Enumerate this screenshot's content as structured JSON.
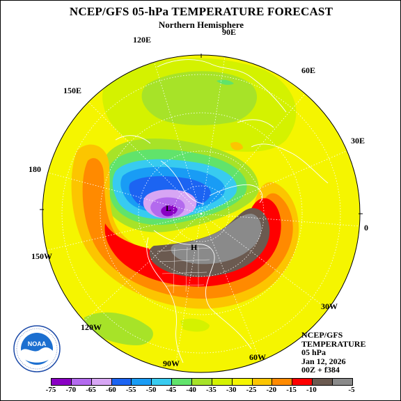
{
  "header": {
    "title": "NCEP/GFS 05-hPa TEMPERATURE FORECAST",
    "subtitle": "Northern Hemisphere"
  },
  "map": {
    "projection": "north-polar-stereographic",
    "longitude_labels": {
      "lon_90e": "90E",
      "lon_120e": "120E",
      "lon_60e": "60E",
      "lon_150e": "150E",
      "lon_30e": "30E",
      "lon_180": "180",
      "lon_0": "0",
      "lon_150w": "150W",
      "lon_30w": "30W",
      "lon_120w": "120W",
      "lon_90w": "90W",
      "lon_60w": "60W"
    },
    "extrema_labels": {
      "low": "L",
      "high": "H"
    },
    "colors": {
      "background_field": "#f5f500",
      "gridline": "#ffffff",
      "coastline": "#ffffff"
    }
  },
  "info": {
    "model": "NCEP/GFS",
    "variable": "TEMPERATURE",
    "level": "05 hPa",
    "date": "Jan 12, 2026",
    "forecast": "00Z + f384"
  },
  "legend": {
    "units_note": "",
    "bins": [
      {
        "label": "-75",
        "color": "#8a00c4"
      },
      {
        "label": "-70",
        "color": "#b36aee"
      },
      {
        "label": "-65",
        "color": "#d7a6f4"
      },
      {
        "label": "-60",
        "color": "#1c64f2"
      },
      {
        "label": "-55",
        "color": "#199cf5"
      },
      {
        "label": "-50",
        "color": "#38cbf0"
      },
      {
        "label": "-45",
        "color": "#61e36b"
      },
      {
        "label": "-40",
        "color": "#a7e328"
      },
      {
        "label": "-35",
        "color": "#d4f200"
      },
      {
        "label": "-30",
        "color": "#f5f500"
      },
      {
        "label": "-25",
        "color": "#fcc500"
      },
      {
        "label": "-20",
        "color": "#ff8a00"
      },
      {
        "label": "-15",
        "color": "#ff0000"
      },
      {
        "label": "-10",
        "color": "#6b5a50"
      },
      {
        "label": "-5",
        "color": "#8a8a8a"
      }
    ]
  },
  "logo": {
    "text": "NOAA",
    "ring_text_top": "NATIONAL OCEANIC AND ATMOSPHERIC ADMINISTRATION",
    "ring_text_bottom": "U.S. DEPARTMENT OF COMMERCE"
  }
}
